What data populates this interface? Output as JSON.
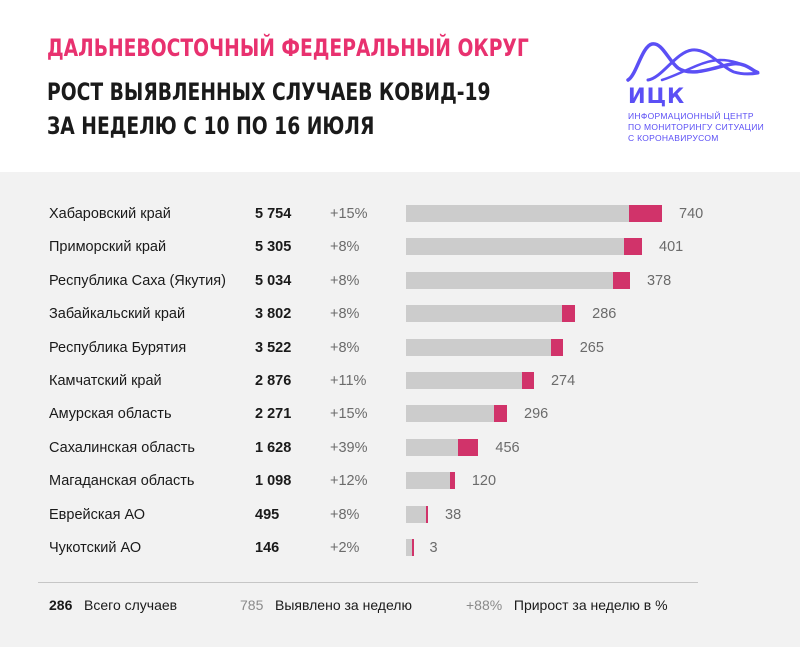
{
  "header": {
    "line1": "ДАЛЬНЕВОСТОЧНЫЙ ФЕДЕРАЛЬНЫЙ ОКРУГ",
    "line2": "РОСТ ВЫЯВЛЕННЫХ СЛУЧАЕВ КОВИД-19",
    "line3": "ЗА НЕДЕЛЮ С 10 ПО 16 ИЮЛЯ"
  },
  "logo": {
    "name": "ИЦК",
    "sub1": "ИНФОРМАЦИОННЫЙ ЦЕНТР",
    "sub2": "ПО МОНИТОРИНГУ СИТУАЦИИ",
    "sub3": "С КОРОНАВИРУСОМ",
    "color": "#5b4ff5"
  },
  "colors": {
    "accent": "#e8316f",
    "bar_new": "#d1336a",
    "bar_base": "#cccccc",
    "panel": "#f2f2f2"
  },
  "chart_data": {
    "type": "bar",
    "orientation": "horizontal",
    "stacked": true,
    "categories": [
      "Хабаровский край",
      "Приморский край",
      "Республика Саха (Якутия)",
      "Забайкальский край",
      "Республика Бурятия",
      "Камчатский край",
      "Амурская область",
      "Сахалинская область",
      "Магаданская область",
      "Еврейская АО",
      "Чукотский АО"
    ],
    "totals": [
      "5 754",
      "5 305",
      "5 034",
      "3 802",
      "3 522",
      "2 876",
      "2 271",
      "1 628",
      "1 098",
      "495",
      "146"
    ],
    "growth": [
      "+15%",
      "+8%",
      "+8%",
      "+8%",
      "+8%",
      "+11%",
      "+15%",
      "+39%",
      "+12%",
      "+8%",
      "+2%"
    ],
    "weekly": [
      "740",
      "401",
      "378",
      "286",
      "265",
      "274",
      "296",
      "456",
      "120",
      "38",
      "3"
    ],
    "series": [
      {
        "values": [
          5014,
          4904,
          4656,
          3516,
          3257,
          2602,
          1975,
          1172,
          978,
          457,
          143
        ]
      },
      {
        "values": [
          740,
          401,
          378,
          286,
          265,
          274,
          296,
          456,
          120,
          38,
          3
        ]
      }
    ],
    "xlim": [
      0,
      5754
    ]
  },
  "legend": {
    "total_value": "286",
    "total_label": "Всего случаев",
    "weekly_value": "785",
    "weekly_label": "Выявлено за неделю",
    "growth_value": "+88%",
    "growth_label": "Прирост за неделю в %"
  }
}
